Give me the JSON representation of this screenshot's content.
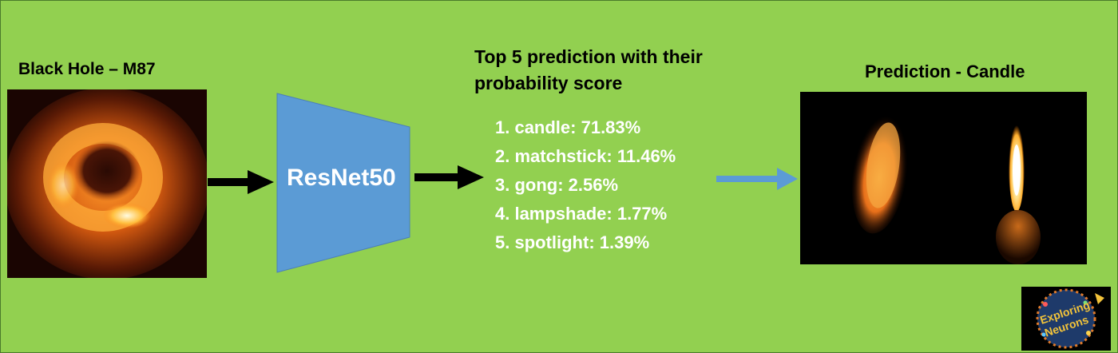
{
  "input": {
    "title": "Black Hole – M87"
  },
  "model": {
    "name": "ResNet50"
  },
  "predictions": {
    "heading_line1": "Top 5 prediction with their",
    "heading_line2": "probability score",
    "items": [
      "1. candle: 71.83%",
      "2. matchstick: 11.46%",
      "3. gong: 2.56%",
      "4. lampshade: 1.77%",
      "5. spotlight: 1.39%"
    ]
  },
  "output": {
    "title": "Prediction - Candle"
  },
  "logo": {
    "text_line1": "Exploring",
    "text_line2": "Neurons"
  },
  "colors": {
    "background": "#92d050",
    "model_block": "#5b9bd5",
    "arrow_black": "#000000",
    "arrow_blue": "#5b9bd5",
    "prediction_text": "#ffffff"
  }
}
